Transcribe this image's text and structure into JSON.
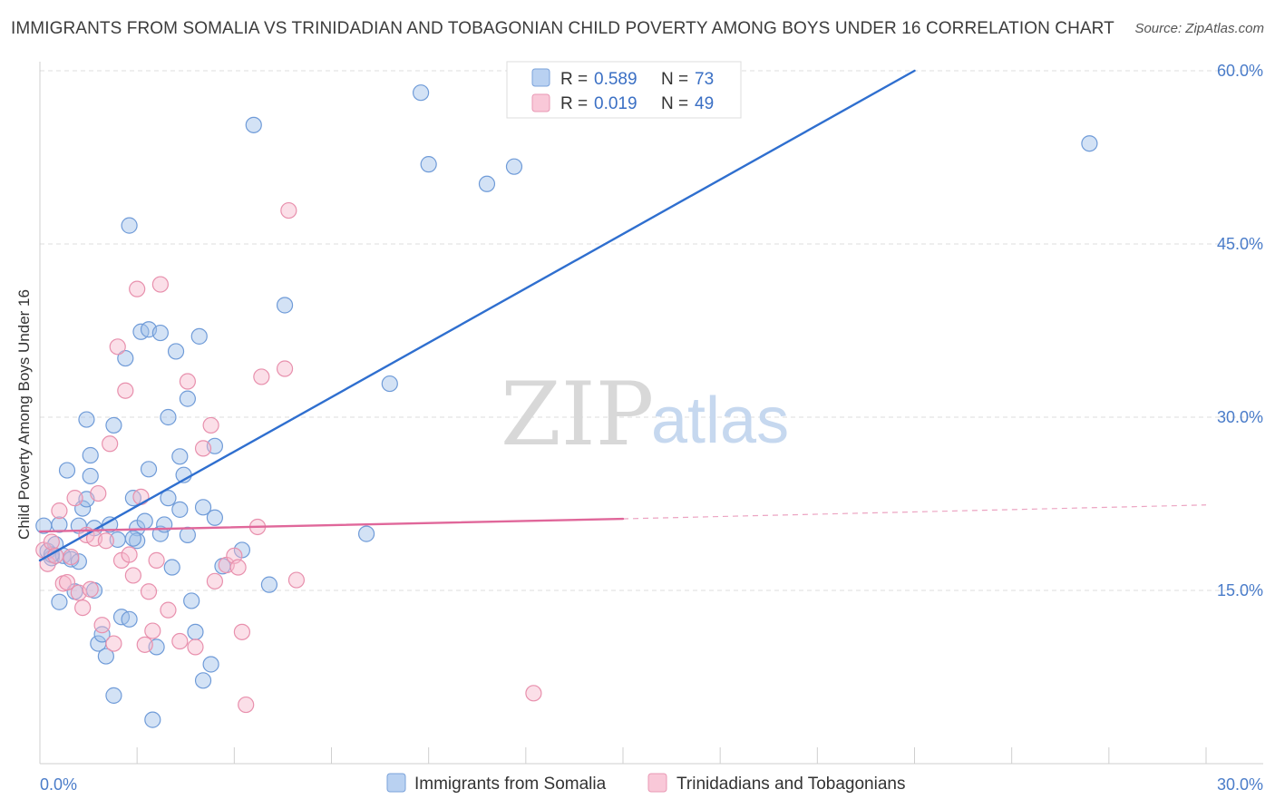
{
  "title": "IMMIGRANTS FROM SOMALIA VS TRINIDADIAN AND TOBAGONIAN CHILD POVERTY AMONG BOYS UNDER 16 CORRELATION CHART",
  "source": "Source: ZipAtlas.com",
  "watermark": {
    "zip": "ZIP",
    "atlas": "atlas"
  },
  "legend_top": {
    "rows": [
      {
        "r_label": "R =",
        "r_value": "0.589",
        "n_label": "N =",
        "n_value": "73"
      },
      {
        "r_label": "R =",
        "r_value": "0.019",
        "n_label": "N =",
        "n_value": "49"
      }
    ]
  },
  "chart_data": {
    "type": "scatter",
    "title": "IMMIGRANTS FROM SOMALIA VS TRINIDADIAN AND TOBAGONIAN CHILD POVERTY AMONG BOYS UNDER 16 CORRELATION CHART",
    "xlabel": "",
    "ylabel": "Child Poverty Among Boys Under 16",
    "xlim": [
      0,
      30
    ],
    "ylim": [
      0,
      60
    ],
    "x_tick_labels": [
      "0.0%",
      "30.0%"
    ],
    "y_ticks": [
      15,
      30,
      45,
      60
    ],
    "y_tick_labels": [
      "15.0%",
      "30.0%",
      "45.0%",
      "60.0%"
    ],
    "grid": true,
    "legend_position": "top-center",
    "series": [
      {
        "name": "Immigrants from Somalia",
        "color": "#9dbfe8",
        "stroke": "#6f9bd8",
        "line_color": "#2f6fcf",
        "r": 0.589,
        "n": 73,
        "trend": {
          "x": [
            0,
            22.5
          ],
          "y": [
            17.6,
            60
          ]
        },
        "points": [
          [
            0.1,
            20.6
          ],
          [
            0.2,
            18.4
          ],
          [
            0.3,
            17.8
          ],
          [
            0.4,
            19.0
          ],
          [
            0.5,
            20.7
          ],
          [
            0.5,
            14.0
          ],
          [
            0.6,
            18.0
          ],
          [
            0.7,
            25.4
          ],
          [
            0.8,
            17.7
          ],
          [
            0.9,
            14.9
          ],
          [
            1.0,
            20.6
          ],
          [
            1.1,
            22.1
          ],
          [
            1.2,
            29.8
          ],
          [
            1.2,
            22.9
          ],
          [
            1.3,
            24.9
          ],
          [
            1.3,
            26.7
          ],
          [
            1.4,
            15.0
          ],
          [
            1.4,
            20.4
          ],
          [
            1.5,
            10.4
          ],
          [
            1.6,
            11.2
          ],
          [
            1.7,
            9.3
          ],
          [
            1.8,
            20.7
          ],
          [
            1.9,
            5.9
          ],
          [
            1.9,
            29.3
          ],
          [
            2.0,
            19.4
          ],
          [
            2.1,
            12.7
          ],
          [
            2.2,
            35.1
          ],
          [
            2.3,
            12.5
          ],
          [
            2.3,
            46.6
          ],
          [
            2.4,
            23.0
          ],
          [
            2.5,
            20.4
          ],
          [
            2.5,
            19.3
          ],
          [
            2.6,
            37.4
          ],
          [
            2.7,
            21.0
          ],
          [
            2.8,
            37.6
          ],
          [
            2.8,
            25.5
          ],
          [
            2.9,
            3.8
          ],
          [
            3.0,
            10.1
          ],
          [
            3.1,
            19.9
          ],
          [
            3.1,
            37.3
          ],
          [
            3.2,
            20.7
          ],
          [
            3.3,
            30.0
          ],
          [
            3.3,
            23.0
          ],
          [
            3.4,
            17.0
          ],
          [
            3.5,
            35.7
          ],
          [
            3.6,
            26.6
          ],
          [
            3.6,
            22.0
          ],
          [
            3.7,
            25.0
          ],
          [
            3.8,
            31.6
          ],
          [
            3.9,
            14.1
          ],
          [
            4.0,
            11.4
          ],
          [
            4.1,
            37.0
          ],
          [
            4.2,
            22.2
          ],
          [
            4.2,
            7.2
          ],
          [
            4.4,
            8.6
          ],
          [
            4.5,
            21.3
          ],
          [
            4.5,
            27.5
          ],
          [
            4.7,
            17.1
          ],
          [
            5.2,
            18.5
          ],
          [
            5.5,
            55.3
          ],
          [
            5.9,
            15.5
          ],
          [
            6.3,
            39.7
          ],
          [
            8.4,
            19.9
          ],
          [
            9.0,
            32.9
          ],
          [
            9.8,
            58.1
          ],
          [
            10.0,
            51.9
          ],
          [
            11.5,
            50.2
          ],
          [
            12.2,
            51.7
          ],
          [
            27.0,
            53.7
          ],
          [
            0.3,
            18.1
          ],
          [
            2.4,
            19.5
          ],
          [
            1.0,
            17.5
          ],
          [
            3.8,
            19.8
          ]
        ]
      },
      {
        "name": "Trinidadians and Tobagonians",
        "color": "#f6b8cd",
        "stroke": "#e890ad",
        "line_color": "#e0679a",
        "r": 0.019,
        "n": 49,
        "trend": {
          "x": [
            0,
            15
          ],
          "y": [
            20.1,
            21.2
          ]
        },
        "trend_dashed": {
          "x": [
            15,
            30
          ],
          "y": [
            21.2,
            22.4
          ]
        },
        "points": [
          [
            0.1,
            18.5
          ],
          [
            0.2,
            17.3
          ],
          [
            0.3,
            19.2
          ],
          [
            0.4,
            18.0
          ],
          [
            0.5,
            21.9
          ],
          [
            0.6,
            15.6
          ],
          [
            0.7,
            15.7
          ],
          [
            0.8,
            17.9
          ],
          [
            0.9,
            23.0
          ],
          [
            1.0,
            14.8
          ],
          [
            1.1,
            13.5
          ],
          [
            1.2,
            19.8
          ],
          [
            1.3,
            15.1
          ],
          [
            1.4,
            19.5
          ],
          [
            1.5,
            23.4
          ],
          [
            1.6,
            12.0
          ],
          [
            1.7,
            19.3
          ],
          [
            1.8,
            27.7
          ],
          [
            1.9,
            10.4
          ],
          [
            2.0,
            36.1
          ],
          [
            2.1,
            17.6
          ],
          [
            2.2,
            32.3
          ],
          [
            2.3,
            18.1
          ],
          [
            2.4,
            16.3
          ],
          [
            2.5,
            41.1
          ],
          [
            2.6,
            23.1
          ],
          [
            2.7,
            10.3
          ],
          [
            2.8,
            14.9
          ],
          [
            2.9,
            11.5
          ],
          [
            3.0,
            17.6
          ],
          [
            3.1,
            41.5
          ],
          [
            3.3,
            13.3
          ],
          [
            3.6,
            10.6
          ],
          [
            3.8,
            33.1
          ],
          [
            4.0,
            10.1
          ],
          [
            4.2,
            27.3
          ],
          [
            4.4,
            29.3
          ],
          [
            4.5,
            15.8
          ],
          [
            4.8,
            17.2
          ],
          [
            5.0,
            18.0
          ],
          [
            5.1,
            17.0
          ],
          [
            5.2,
            11.4
          ],
          [
            5.3,
            5.1
          ],
          [
            5.6,
            20.5
          ],
          [
            5.7,
            33.5
          ],
          [
            6.3,
            34.2
          ],
          [
            6.4,
            47.9
          ],
          [
            6.6,
            15.9
          ],
          [
            12.7,
            6.1
          ]
        ]
      }
    ]
  }
}
